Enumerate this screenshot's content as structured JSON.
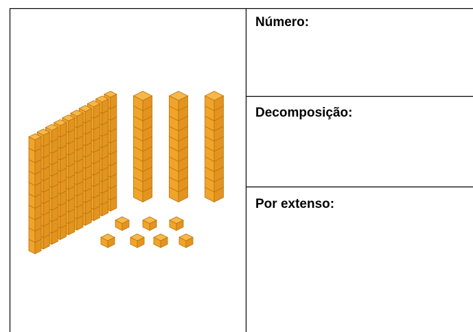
{
  "table": {
    "rows": [
      {
        "label": "Número:"
      },
      {
        "label": "Decomposição:"
      },
      {
        "label": "Por extenso:"
      }
    ]
  }
}
